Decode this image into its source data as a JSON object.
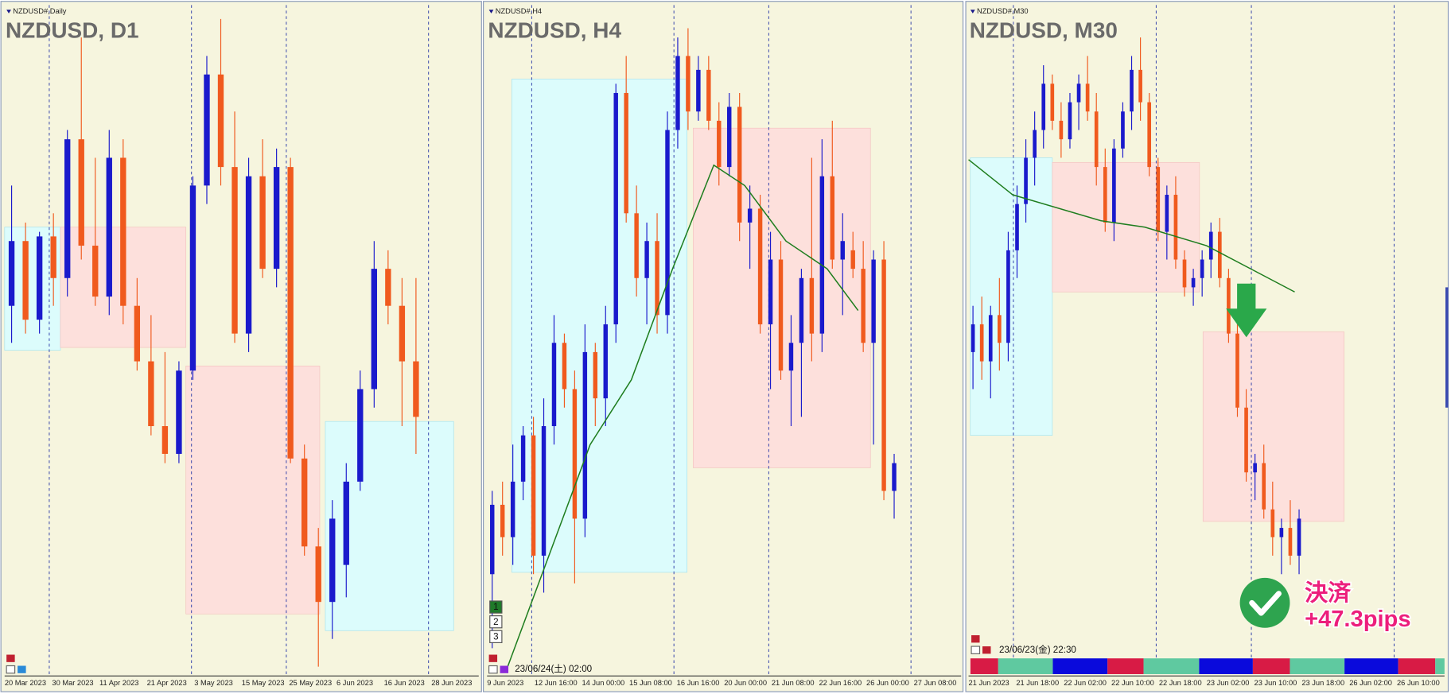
{
  "chart_data": [
    {
      "type": "candlestick",
      "header": "NZDUSD#,Daily",
      "title": "NZDUSD, D1",
      "up_color": "#1a1acc",
      "down_color": "#f05a1e",
      "xlim": [
        0,
        34
      ],
      "ylim": [
        0.5897,
        0.662
      ],
      "ohlc": [
        [
          0.6295,
          0.6425,
          0.6255,
          0.6365
        ],
        [
          0.6365,
          0.6385,
          0.6265,
          0.628
        ],
        [
          0.628,
          0.6375,
          0.6265,
          0.637
        ],
        [
          0.637,
          0.6395,
          0.6295,
          0.6325
        ],
        [
          0.6325,
          0.6485,
          0.6305,
          0.6475
        ],
        [
          0.6475,
          0.6585,
          0.6345,
          0.636
        ],
        [
          0.636,
          0.6455,
          0.6295,
          0.6305
        ],
        [
          0.6305,
          0.6485,
          0.6285,
          0.6455
        ],
        [
          0.6455,
          0.6475,
          0.6275,
          0.6295
        ],
        [
          0.6295,
          0.6325,
          0.6225,
          0.6235
        ],
        [
          0.6235,
          0.6285,
          0.6155,
          0.6165
        ],
        [
          0.6165,
          0.6245,
          0.6125,
          0.6135
        ],
        [
          0.6135,
          0.6235,
          0.6125,
          0.6225
        ],
        [
          0.6225,
          0.6435,
          0.6215,
          0.6425
        ],
        [
          0.6425,
          0.6565,
          0.6405,
          0.6545
        ],
        [
          0.6545,
          0.6605,
          0.6425,
          0.6445
        ],
        [
          0.6445,
          0.6505,
          0.6255,
          0.6265
        ],
        [
          0.6265,
          0.6455,
          0.6245,
          0.6435
        ],
        [
          0.6435,
          0.6475,
          0.6325,
          0.6335
        ],
        [
          0.6335,
          0.6465,
          0.6315,
          0.6445
        ],
        [
          0.6445,
          0.6455,
          0.6125,
          0.613
        ],
        [
          0.613,
          0.6145,
          0.6025,
          0.6035
        ],
        [
          0.6035,
          0.6055,
          0.5905,
          0.5975
        ],
        [
          0.5975,
          0.6085,
          0.5935,
          0.6065
        ],
        [
          0.6015,
          0.6125,
          0.598,
          0.6105
        ],
        [
          0.6105,
          0.6225,
          0.6095,
          0.6205
        ],
        [
          0.6205,
          0.6365,
          0.6185,
          0.6335
        ],
        [
          0.6335,
          0.6355,
          0.6275,
          0.6295
        ],
        [
          0.6295,
          0.6325,
          0.6165,
          0.6235
        ],
        [
          0.6235,
          0.6325,
          0.6135,
          0.6175
        ]
      ],
      "zones": [
        {
          "from": 0,
          "to": 4,
          "top": 0.638,
          "bottom": 0.6247,
          "color": "#dcfcfc"
        },
        {
          "from": 4,
          "to": 13,
          "top": 0.638,
          "bottom": 0.625,
          "color": "#fde0dc"
        },
        {
          "from": 13,
          "to": 22.6,
          "top": 0.623,
          "bottom": 0.5962,
          "color": "#fde0dc"
        },
        {
          "from": 23,
          "to": 32.2,
          "top": 0.617,
          "bottom": 0.5944,
          "color": "#dcfcfc"
        }
      ],
      "x_labels": [
        "20 Mar 2023",
        "30 Mar 2023",
        "11 Apr 2023",
        "21 Apr 2023",
        "3 May 2023",
        "15 May 2023",
        "25 May 2023",
        "6 Jun 2023",
        "16 Jun 2023",
        "28 Jun 2023"
      ]
    },
    {
      "type": "candlestick",
      "header": "NZDUSD#,H4",
      "title": "NZDUSD, H4",
      "up_color": "#1a1acc",
      "down_color": "#f05a1e",
      "xlim": [
        0,
        46
      ],
      "ylim": [
        0.5897,
        0.662
      ],
      "ohlc": [
        [
          0.6005,
          0.6095,
          0.5925,
          0.608
        ],
        [
          0.608,
          0.6105,
          0.6025,
          0.6045
        ],
        [
          0.6045,
          0.6145,
          0.6015,
          0.6105
        ],
        [
          0.6105,
          0.6165,
          0.6085,
          0.6155
        ],
        [
          0.6155,
          0.6175,
          0.6005,
          0.6025
        ],
        [
          0.6025,
          0.6195,
          0.5985,
          0.6165
        ],
        [
          0.6165,
          0.6285,
          0.6145,
          0.6255
        ],
        [
          0.6255,
          0.6265,
          0.6185,
          0.6205
        ],
        [
          0.6205,
          0.6225,
          0.5995,
          0.6065
        ],
        [
          0.6065,
          0.6275,
          0.6045,
          0.6245
        ],
        [
          0.6245,
          0.6255,
          0.6165,
          0.6195
        ],
        [
          0.6195,
          0.6295,
          0.6165,
          0.6275
        ],
        [
          0.6275,
          0.6535,
          0.6255,
          0.6525
        ],
        [
          0.6525,
          0.6565,
          0.6385,
          0.6395
        ],
        [
          0.6395,
          0.6425,
          0.6305,
          0.6325
        ],
        [
          0.6325,
          0.6385,
          0.6275,
          0.6365
        ],
        [
          0.6365,
          0.6395,
          0.6265,
          0.6285
        ],
        [
          0.6285,
          0.6505,
          0.6265,
          0.6485
        ],
        [
          0.6485,
          0.6585,
          0.6465,
          0.6565
        ],
        [
          0.6565,
          0.6595,
          0.6485,
          0.6505
        ],
        [
          0.6505,
          0.6565,
          0.6495,
          0.655
        ],
        [
          0.655,
          0.6565,
          0.6485,
          0.6495
        ],
        [
          0.6495,
          0.6515,
          0.6425,
          0.6445
        ],
        [
          0.6445,
          0.6525,
          0.6435,
          0.651
        ],
        [
          0.651,
          0.6525,
          0.6365,
          0.6385
        ],
        [
          0.6385,
          0.6425,
          0.6335,
          0.64
        ],
        [
          0.64,
          0.6415,
          0.6265,
          0.6275
        ],
        [
          0.6275,
          0.6375,
          0.6205,
          0.6345
        ],
        [
          0.6345,
          0.6365,
          0.6215,
          0.6225
        ],
        [
          0.6225,
          0.6285,
          0.6165,
          0.6255
        ],
        [
          0.6255,
          0.6335,
          0.6175,
          0.6325
        ],
        [
          0.6325,
          0.6455,
          0.6235,
          0.6265
        ],
        [
          0.6265,
          0.6475,
          0.6245,
          0.6435
        ],
        [
          0.6435,
          0.6495,
          0.6335,
          0.6345
        ],
        [
          0.6345,
          0.6395,
          0.6285,
          0.6365
        ],
        [
          0.6355,
          0.6375,
          0.6325,
          0.6335
        ],
        [
          0.6335,
          0.6365,
          0.6245,
          0.6255
        ],
        [
          0.6255,
          0.6355,
          0.6145,
          0.6345
        ],
        [
          0.6345,
          0.6365,
          0.6085,
          0.6095
        ],
        [
          0.6095,
          0.6135,
          0.6065,
          0.6125
        ]
      ],
      "zones": [
        {
          "from": 2.4,
          "to": 19.4,
          "top": 0.654,
          "bottom": 0.6007,
          "color": "#dcfcfc"
        },
        {
          "from": 20,
          "to": 37.2,
          "top": 0.6487,
          "bottom": 0.612,
          "color": "#fde0dc"
        }
      ],
      "ma": {
        "color": "#1e7d1e",
        "x": [
          2,
          6,
          10,
          14,
          18,
          22,
          25,
          29,
          33,
          36
        ],
        "values": [
          0.5905,
          0.6025,
          0.6145,
          0.6215,
          0.6335,
          0.6447,
          0.6425,
          0.6365,
          0.6335,
          0.629
        ]
      },
      "buttons": [
        "1",
        "2",
        "3"
      ],
      "cursor_label": "23/06/24(土) 02:00",
      "x_labels": [
        "9 Jun 2023",
        "12 Jun 16:00",
        "14 Jun 00:00",
        "15 Jun 08:00",
        "16 Jun 16:00",
        "20 Jun 00:00",
        "21 Jun 08:00",
        "22 Jun 16:00",
        "26 Jun 00:00",
        "27 Jun 08:00"
      ]
    },
    {
      "type": "candlestick",
      "header": "NZDUSD#,M30",
      "title": "NZDUSD, M30",
      "up_color": "#1a1acc",
      "down_color": "#f05a1e",
      "xlim": [
        0,
        54
      ],
      "ylim": [
        0.5897,
        0.662
      ],
      "ohlc": [
        [
          0.6245,
          0.6295,
          0.6205,
          0.6275
        ],
        [
          0.6275,
          0.6305,
          0.6215,
          0.6235
        ],
        [
          0.6235,
          0.6295,
          0.6195,
          0.6285
        ],
        [
          0.6285,
          0.6325,
          0.6225,
          0.6255
        ],
        [
          0.6255,
          0.6375,
          0.6235,
          0.6355
        ],
        [
          0.6355,
          0.6425,
          0.6325,
          0.6405
        ],
        [
          0.6405,
          0.6475,
          0.6385,
          0.6455
        ],
        [
          0.6455,
          0.6505,
          0.6425,
          0.6485
        ],
        [
          0.6485,
          0.6555,
          0.6465,
          0.6535
        ],
        [
          0.6535,
          0.6545,
          0.6485,
          0.6495
        ],
        [
          0.6495,
          0.6515,
          0.6455,
          0.6475
        ],
        [
          0.6475,
          0.6525,
          0.6465,
          0.6515
        ],
        [
          0.6515,
          0.6545,
          0.6485,
          0.6535
        ],
        [
          0.6535,
          0.6565,
          0.6495,
          0.6505
        ],
        [
          0.6505,
          0.6525,
          0.6425,
          0.6445
        ],
        [
          0.6445,
          0.6465,
          0.6375,
          0.6385
        ],
        [
          0.6385,
          0.6475,
          0.6365,
          0.6465
        ],
        [
          0.6465,
          0.6515,
          0.6455,
          0.6505
        ],
        [
          0.6505,
          0.6565,
          0.6485,
          0.655
        ],
        [
          0.655,
          0.6585,
          0.6495,
          0.6515
        ],
        [
          0.6515,
          0.6525,
          0.6435,
          0.6445
        ],
        [
          0.6445,
          0.6455,
          0.6365,
          0.6375
        ],
        [
          0.6375,
          0.6425,
          0.6345,
          0.6415
        ],
        [
          0.6415,
          0.6435,
          0.6335,
          0.6345
        ],
        [
          0.6345,
          0.6355,
          0.6305,
          0.6315
        ],
        [
          0.6315,
          0.6335,
          0.6295,
          0.6325
        ],
        [
          0.6325,
          0.6355,
          0.6305,
          0.6345
        ],
        [
          0.6345,
          0.6385,
          0.6325,
          0.6375
        ],
        [
          0.6375,
          0.639,
          0.6315,
          0.6325
        ],
        [
          0.6325,
          0.6335,
          0.6255,
          0.6265
        ],
        [
          0.6265,
          0.6275,
          0.6175,
          0.6185
        ],
        [
          0.6185,
          0.6205,
          0.6105,
          0.6115
        ],
        [
          0.6115,
          0.6135,
          0.6085,
          0.6125
        ],
        [
          0.6125,
          0.6145,
          0.6065,
          0.6075
        ],
        [
          0.6075,
          0.6105,
          0.6025,
          0.6045
        ],
        [
          0.6045,
          0.6065,
          0.6005,
          0.6055
        ],
        [
          0.6055,
          0.6085,
          0.6015,
          0.6025
        ],
        [
          0.6025,
          0.6075,
          0.6005,
          0.6065
        ]
      ],
      "zones": [
        {
          "from": 0.2,
          "to": 9.5,
          "top": 0.6455,
          "bottom": 0.6155,
          "color": "#dcfcfc"
        },
        {
          "from": 9.5,
          "to": 26.2,
          "top": 0.645,
          "bottom": 0.631,
          "color": "#fde0dc"
        },
        {
          "from": 26.6,
          "to": 42.6,
          "top": 0.6267,
          "bottom": 0.6062,
          "color": "#fde0dc"
        }
      ],
      "ma": {
        "color": "#1e7d1e",
        "x": [
          0,
          5,
          15,
          20,
          27,
          32,
          37
        ],
        "values": [
          0.6453,
          0.6415,
          0.6387,
          0.638,
          0.636,
          0.6335,
          0.631
        ]
      },
      "cursor_label": "23/06/23(金) 22:30",
      "annotation": {
        "text": "決済",
        "result": "+47.3pips"
      },
      "x_labels": [
        "21 Jun 2023",
        "21 Jun 18:00",
        "22 Jun 02:00",
        "22 Jun 10:00",
        "22 Jun 18:00",
        "23 Jun 02:00",
        "23 Jun 10:00",
        "23 Jun 18:00",
        "26 Jun 02:00",
        "26 Jun 10:00"
      ]
    }
  ]
}
